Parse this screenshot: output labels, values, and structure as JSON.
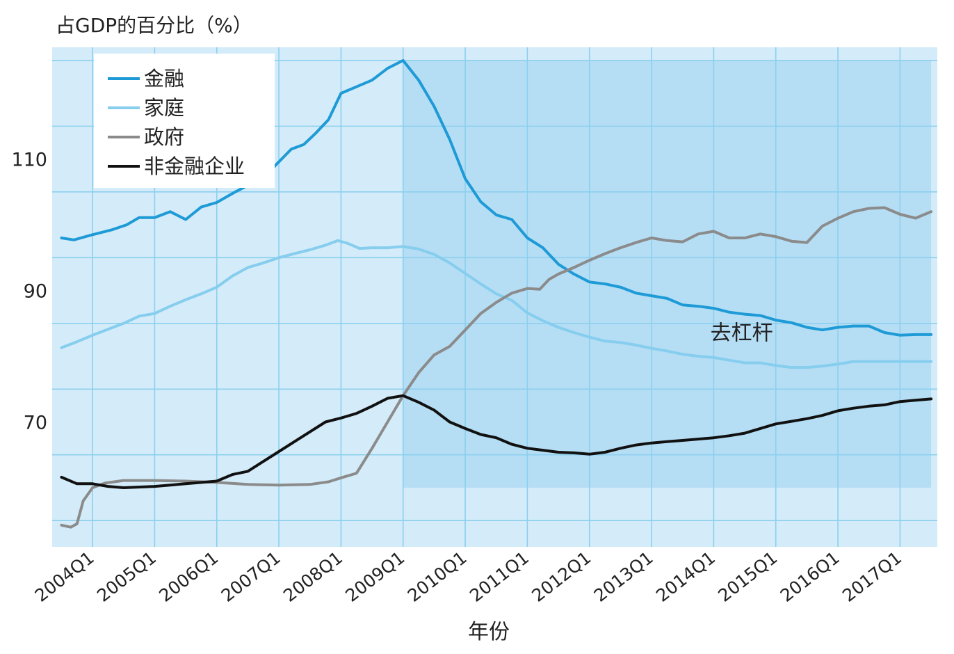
{
  "chart_data": {
    "type": "line",
    "title": "占GDP的百分比（%）",
    "xlabel": "年份",
    "ylabel": "",
    "x_tick_labels": [
      "2004Q1",
      "2005Q1",
      "2006Q1",
      "2007Q1",
      "2008Q1",
      "2009Q1",
      "2010Q1",
      "2011Q1",
      "2012Q1",
      "2013Q1",
      "2014Q1",
      "2015Q1",
      "2016Q1",
      "2017Q1"
    ],
    "y_ticks": [
      70,
      90,
      110
    ],
    "ylim": [
      51,
      127
    ],
    "xlim": [
      2003.35,
      2017.6
    ],
    "grid": true,
    "legend": {
      "position": "top-left"
    },
    "annotation": {
      "text": "去杠杆",
      "x": 2014.45,
      "y": 82.5
    },
    "shaded_region": {
      "x": [
        2009.0,
        2017.5
      ],
      "y": [
        60,
        125
      ]
    },
    "series": [
      {
        "name": "金融",
        "color": "#1e9ad6",
        "points": [
          [
            2003.5,
            98.0
          ],
          [
            2003.7,
            97.7
          ],
          [
            2004.0,
            98.5
          ],
          [
            2004.3,
            99.2
          ],
          [
            2004.55,
            100.0
          ],
          [
            2004.75,
            101.1
          ],
          [
            2005.0,
            101.1
          ],
          [
            2005.25,
            102.0
          ],
          [
            2005.5,
            100.8
          ],
          [
            2005.75,
            102.7
          ],
          [
            2006.0,
            103.4
          ],
          [
            2006.3,
            105.0
          ],
          [
            2006.6,
            106.5
          ],
          [
            2006.9,
            108.6
          ],
          [
            2007.2,
            111.5
          ],
          [
            2007.4,
            112.2
          ],
          [
            2007.6,
            114.0
          ],
          [
            2007.8,
            116.0
          ],
          [
            2008.0,
            120.0
          ],
          [
            2008.25,
            121.0
          ],
          [
            2008.5,
            122.0
          ],
          [
            2008.75,
            123.8
          ],
          [
            2009.0,
            125.0
          ],
          [
            2009.25,
            122.0
          ],
          [
            2009.5,
            118.0
          ],
          [
            2009.75,
            113.0
          ],
          [
            2010.0,
            107.0
          ],
          [
            2010.25,
            103.5
          ],
          [
            2010.5,
            101.5
          ],
          [
            2010.75,
            100.8
          ],
          [
            2011.0,
            98.0
          ],
          [
            2011.25,
            96.5
          ],
          [
            2011.5,
            94.0
          ],
          [
            2011.75,
            92.5
          ],
          [
            2012.0,
            91.3
          ],
          [
            2012.25,
            91.0
          ],
          [
            2012.5,
            90.5
          ],
          [
            2012.75,
            89.6
          ],
          [
            2013.0,
            89.2
          ],
          [
            2013.25,
            88.8
          ],
          [
            2013.5,
            87.8
          ],
          [
            2013.75,
            87.6
          ],
          [
            2014.0,
            87.3
          ],
          [
            2014.25,
            86.7
          ],
          [
            2014.5,
            86.4
          ],
          [
            2014.75,
            86.2
          ],
          [
            2015.0,
            85.5
          ],
          [
            2015.25,
            85.1
          ],
          [
            2015.5,
            84.4
          ],
          [
            2015.75,
            84.0
          ],
          [
            2016.0,
            84.4
          ],
          [
            2016.25,
            84.6
          ],
          [
            2016.5,
            84.6
          ],
          [
            2016.75,
            83.6
          ],
          [
            2017.0,
            83.2
          ],
          [
            2017.25,
            83.3
          ],
          [
            2017.5,
            83.3
          ]
        ]
      },
      {
        "name": "家庭",
        "color": "#86cdee",
        "points": [
          [
            2003.5,
            81.3
          ],
          [
            2003.75,
            82.2
          ],
          [
            2004.0,
            83.2
          ],
          [
            2004.25,
            84.1
          ],
          [
            2004.5,
            85.0
          ],
          [
            2004.75,
            86.1
          ],
          [
            2005.0,
            86.5
          ],
          [
            2005.25,
            87.6
          ],
          [
            2005.5,
            88.6
          ],
          [
            2005.75,
            89.5
          ],
          [
            2006.0,
            90.5
          ],
          [
            2006.25,
            92.2
          ],
          [
            2006.5,
            93.5
          ],
          [
            2006.75,
            94.2
          ],
          [
            2007.0,
            95.0
          ],
          [
            2007.25,
            95.6
          ],
          [
            2007.5,
            96.2
          ],
          [
            2007.75,
            96.9
          ],
          [
            2007.95,
            97.6
          ],
          [
            2008.1,
            97.2
          ],
          [
            2008.3,
            96.4
          ],
          [
            2008.5,
            96.5
          ],
          [
            2008.75,
            96.5
          ],
          [
            2009.0,
            96.7
          ],
          [
            2009.25,
            96.3
          ],
          [
            2009.5,
            95.5
          ],
          [
            2009.75,
            94.2
          ],
          [
            2010.0,
            92.6
          ],
          [
            2010.25,
            91.0
          ],
          [
            2010.5,
            89.5
          ],
          [
            2010.75,
            88.5
          ],
          [
            2011.0,
            86.6
          ],
          [
            2011.25,
            85.4
          ],
          [
            2011.5,
            84.4
          ],
          [
            2011.75,
            83.6
          ],
          [
            2012.0,
            82.9
          ],
          [
            2012.25,
            82.3
          ],
          [
            2012.5,
            82.1
          ],
          [
            2012.75,
            81.7
          ],
          [
            2013.0,
            81.2
          ],
          [
            2013.25,
            80.8
          ],
          [
            2013.5,
            80.3
          ],
          [
            2013.75,
            80.0
          ],
          [
            2014.0,
            79.8
          ],
          [
            2014.25,
            79.4
          ],
          [
            2014.5,
            79.0
          ],
          [
            2014.75,
            79.0
          ],
          [
            2015.0,
            78.6
          ],
          [
            2015.25,
            78.3
          ],
          [
            2015.5,
            78.3
          ],
          [
            2015.75,
            78.5
          ],
          [
            2016.0,
            78.8
          ],
          [
            2016.25,
            79.2
          ],
          [
            2016.5,
            79.2
          ],
          [
            2016.75,
            79.2
          ],
          [
            2017.0,
            79.2
          ],
          [
            2017.25,
            79.2
          ],
          [
            2017.5,
            79.2
          ]
        ]
      },
      {
        "name": "政府",
        "color": "#8b8b8b",
        "points": [
          [
            2003.5,
            54.3
          ],
          [
            2003.65,
            54.0
          ],
          [
            2003.75,
            54.5
          ],
          [
            2003.85,
            58.0
          ],
          [
            2004.0,
            60.0
          ],
          [
            2004.2,
            60.7
          ],
          [
            2004.5,
            61.1
          ],
          [
            2005.0,
            61.1
          ],
          [
            2005.5,
            61.0
          ],
          [
            2006.0,
            60.8
          ],
          [
            2006.5,
            60.5
          ],
          [
            2007.0,
            60.4
          ],
          [
            2007.5,
            60.5
          ],
          [
            2007.8,
            60.9
          ],
          [
            2008.0,
            61.5
          ],
          [
            2008.25,
            62.2
          ],
          [
            2008.5,
            66.0
          ],
          [
            2008.75,
            70.0
          ],
          [
            2009.0,
            74.0
          ],
          [
            2009.25,
            77.5
          ],
          [
            2009.5,
            80.2
          ],
          [
            2009.75,
            81.5
          ],
          [
            2010.0,
            84.0
          ],
          [
            2010.25,
            86.5
          ],
          [
            2010.5,
            88.2
          ],
          [
            2010.75,
            89.6
          ],
          [
            2011.0,
            90.3
          ],
          [
            2011.2,
            90.2
          ],
          [
            2011.35,
            91.7
          ],
          [
            2011.5,
            92.5
          ],
          [
            2011.75,
            93.5
          ],
          [
            2012.0,
            94.6
          ],
          [
            2012.25,
            95.6
          ],
          [
            2012.5,
            96.5
          ],
          [
            2012.75,
            97.3
          ],
          [
            2013.0,
            98.0
          ],
          [
            2013.25,
            97.6
          ],
          [
            2013.5,
            97.4
          ],
          [
            2013.75,
            98.6
          ],
          [
            2014.0,
            99.0
          ],
          [
            2014.25,
            98.0
          ],
          [
            2014.5,
            98.0
          ],
          [
            2014.75,
            98.6
          ],
          [
            2015.0,
            98.2
          ],
          [
            2015.25,
            97.5
          ],
          [
            2015.5,
            97.3
          ],
          [
            2015.75,
            99.8
          ],
          [
            2016.0,
            101.0
          ],
          [
            2016.25,
            102.0
          ],
          [
            2016.5,
            102.5
          ],
          [
            2016.75,
            102.6
          ],
          [
            2017.0,
            101.6
          ],
          [
            2017.25,
            101.0
          ],
          [
            2017.5,
            102.0
          ]
        ]
      },
      {
        "name": "非金融企业",
        "color": "#111111",
        "points": [
          [
            2003.5,
            61.6
          ],
          [
            2003.75,
            60.6
          ],
          [
            2004.0,
            60.6
          ],
          [
            2004.25,
            60.2
          ],
          [
            2004.5,
            60.0
          ],
          [
            2005.0,
            60.2
          ],
          [
            2005.5,
            60.6
          ],
          [
            2006.0,
            61.0
          ],
          [
            2006.25,
            62.0
          ],
          [
            2006.5,
            62.5
          ],
          [
            2006.75,
            64.0
          ],
          [
            2007.0,
            65.5
          ],
          [
            2007.25,
            67.0
          ],
          [
            2007.5,
            68.5
          ],
          [
            2007.75,
            70.0
          ],
          [
            2008.0,
            70.6
          ],
          [
            2008.25,
            71.3
          ],
          [
            2008.5,
            72.4
          ],
          [
            2008.75,
            73.6
          ],
          [
            2009.0,
            74.0
          ],
          [
            2009.25,
            73.0
          ],
          [
            2009.5,
            71.8
          ],
          [
            2009.75,
            70.0
          ],
          [
            2010.0,
            69.0
          ],
          [
            2010.25,
            68.1
          ],
          [
            2010.5,
            67.6
          ],
          [
            2010.75,
            66.6
          ],
          [
            2011.0,
            66.0
          ],
          [
            2011.25,
            65.7
          ],
          [
            2011.5,
            65.4
          ],
          [
            2011.75,
            65.3
          ],
          [
            2012.0,
            65.1
          ],
          [
            2012.25,
            65.4
          ],
          [
            2012.5,
            66.0
          ],
          [
            2012.75,
            66.5
          ],
          [
            2013.0,
            66.8
          ],
          [
            2013.25,
            67.0
          ],
          [
            2013.5,
            67.2
          ],
          [
            2013.75,
            67.4
          ],
          [
            2014.0,
            67.6
          ],
          [
            2014.25,
            67.9
          ],
          [
            2014.5,
            68.3
          ],
          [
            2014.75,
            69.0
          ],
          [
            2015.0,
            69.7
          ],
          [
            2015.25,
            70.1
          ],
          [
            2015.5,
            70.5
          ],
          [
            2015.75,
            71.0
          ],
          [
            2016.0,
            71.7
          ],
          [
            2016.25,
            72.1
          ],
          [
            2016.5,
            72.4
          ],
          [
            2016.75,
            72.6
          ],
          [
            2017.0,
            73.1
          ],
          [
            2017.25,
            73.3
          ],
          [
            2017.5,
            73.5
          ]
        ]
      }
    ]
  }
}
